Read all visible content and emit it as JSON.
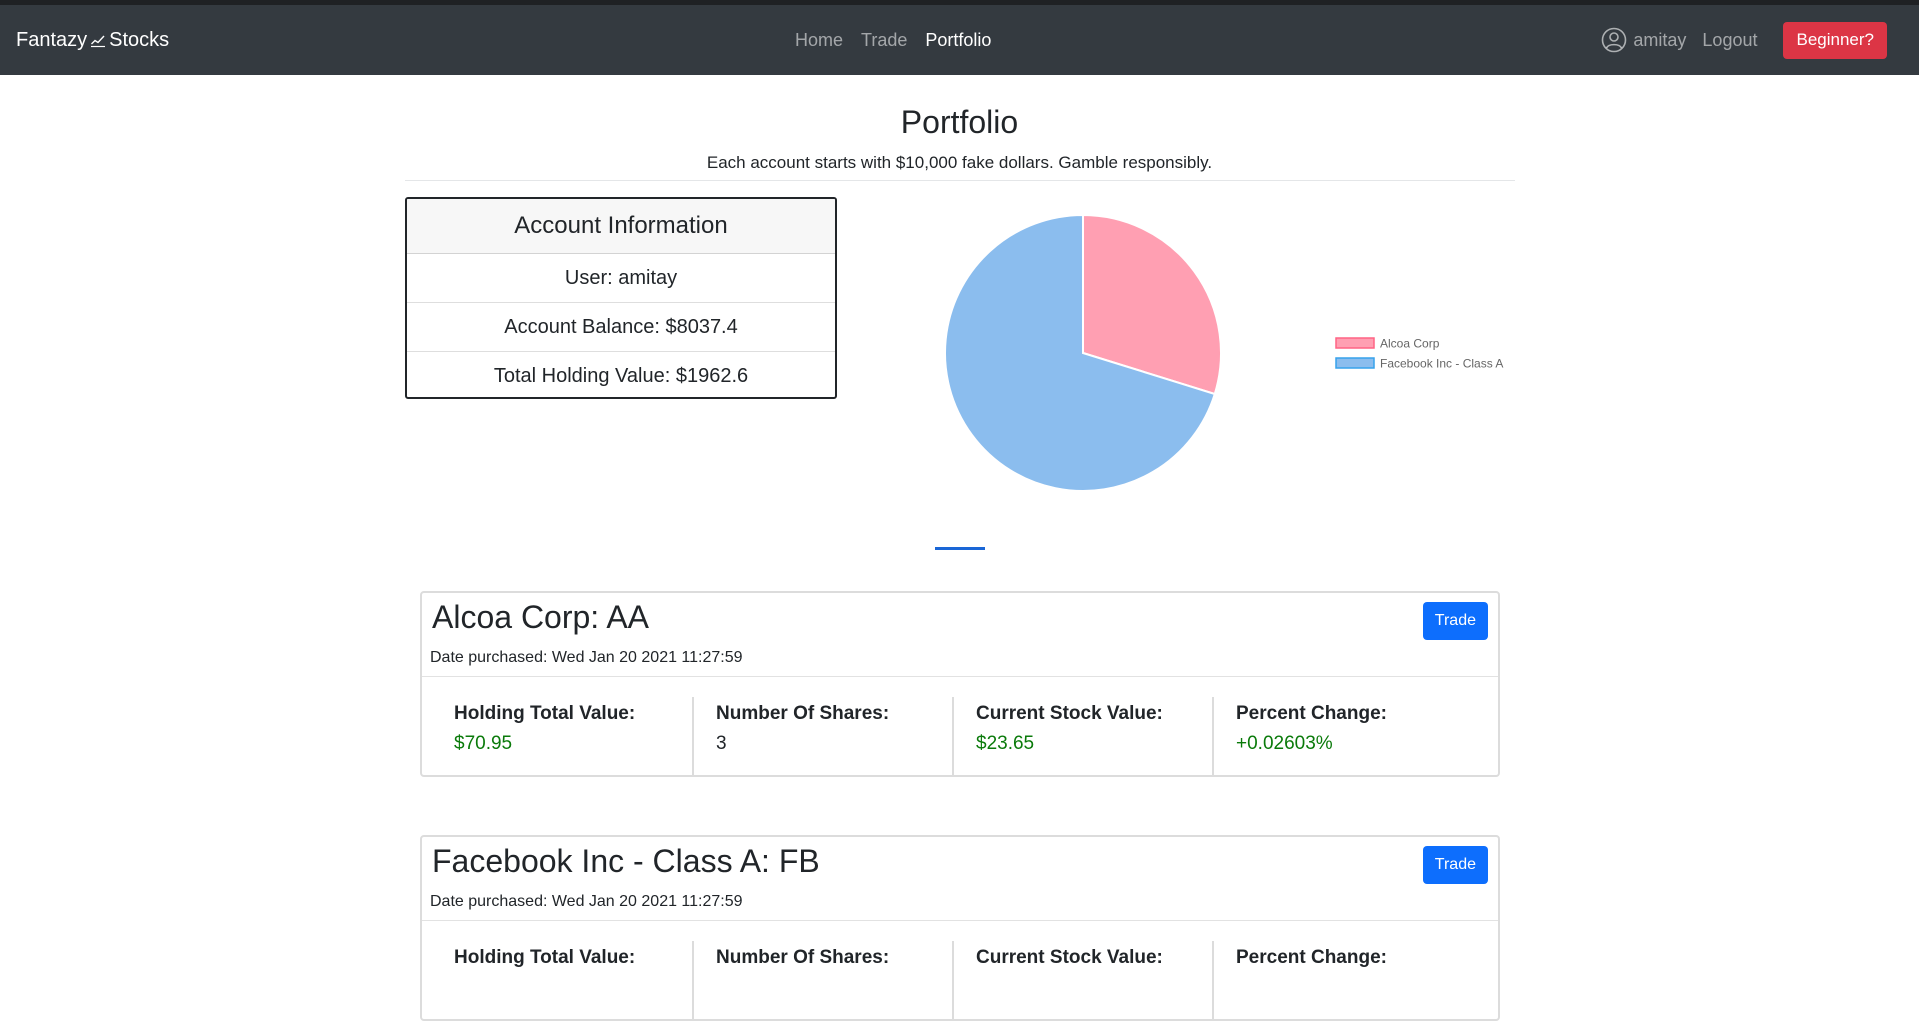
{
  "navbar": {
    "brand_left": "Fantazy",
    "brand_icon": "chart-line-icon",
    "brand_right": "Stocks",
    "links": [
      {
        "label": "Home",
        "active": false
      },
      {
        "label": "Trade",
        "active": false
      },
      {
        "label": "Portfolio",
        "active": true
      }
    ],
    "user_icon": "user-circle-icon",
    "username": "amitay",
    "logout_label": "Logout",
    "beginner_label": "Beginner?"
  },
  "header": {
    "title": "Portfolio",
    "subtitle": "Each account starts with $10,000 fake dollars. Gamble responsibly."
  },
  "account": {
    "title": "Account Information",
    "user": "User: amitay",
    "balance": "Account Balance: $8037.4",
    "holding_value": "Total Holding Value: $1962.6"
  },
  "chart_data": {
    "type": "pie",
    "categories": [
      "Alcoa Corp",
      "Facebook Inc - Class A"
    ],
    "values": [
      29.8,
      70.2
    ],
    "colors": [
      "#ff9fb2",
      "#8bbdee"
    ],
    "border_colors": [
      "#ff6384",
      "#36a2eb"
    ],
    "title": "",
    "legend": "right"
  },
  "holdings": [
    {
      "title": "Alcoa Corp: AA",
      "date": "Date purchased: Wed Jan 20 2021 11:27:59",
      "trade_label": "Trade",
      "stats": [
        {
          "label": "Holding Total Value:",
          "value": "$70.95",
          "color": "green"
        },
        {
          "label": "Number Of Shares:",
          "value": "3",
          "color": "default"
        },
        {
          "label": "Current Stock Value:",
          "value": "$23.65",
          "color": "green"
        },
        {
          "label": "Percent Change:",
          "value": "+0.02603%",
          "color": "green"
        }
      ]
    },
    {
      "title": "Facebook Inc - Class A: FB",
      "date": "Date purchased: Wed Jan 20 2021 11:27:59",
      "trade_label": "Trade",
      "stats": [
        {
          "label": "Holding Total Value:",
          "value": "",
          "color": "green"
        },
        {
          "label": "Number Of Shares:",
          "value": "",
          "color": "default"
        },
        {
          "label": "Current Stock Value:",
          "value": "",
          "color": "green"
        },
        {
          "label": "Percent Change:",
          "value": "",
          "color": "green"
        }
      ]
    }
  ]
}
